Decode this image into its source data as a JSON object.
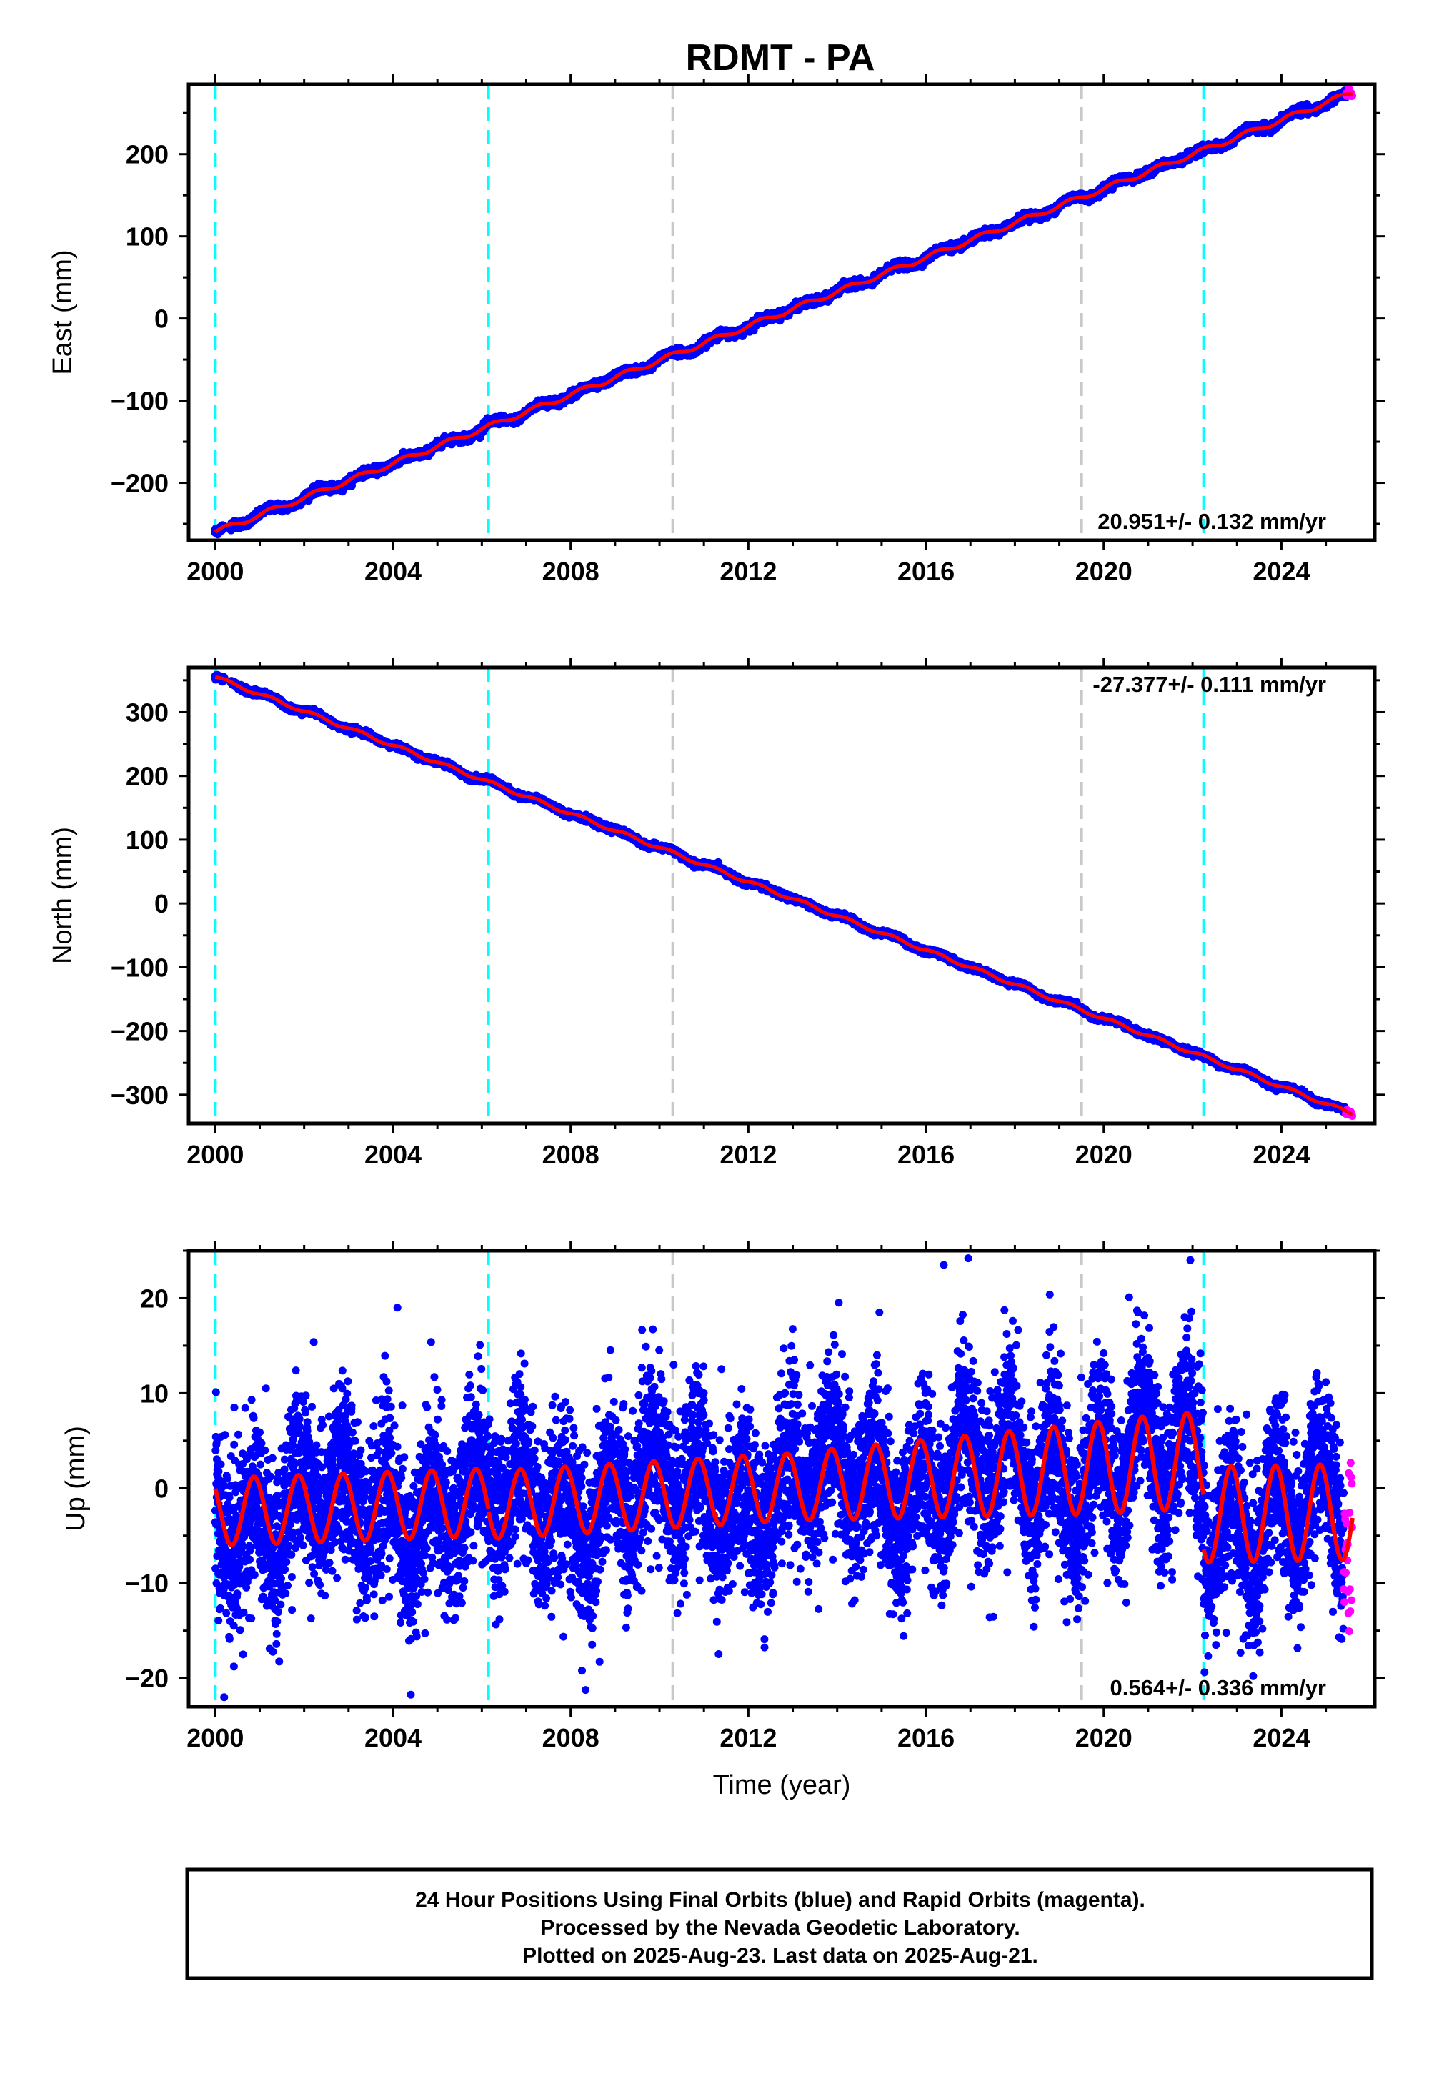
{
  "title": "RDMT - PA",
  "colors": {
    "final_points": "#0000ff",
    "rapid_points": "#ff00ff",
    "model_line": "#ff0000",
    "equipment_change": "#00ffff",
    "event_line": "#c8c8c8"
  },
  "x_ticks": [
    2000,
    2004,
    2008,
    2012,
    2016,
    2020,
    2024
  ],
  "x_axis_label": "Time (year)",
  "vertical_markers": [
    {
      "year": 2000.0,
      "kind": "equipment_change"
    },
    {
      "year": 2006.15,
      "kind": "equipment_change"
    },
    {
      "year": 2010.3,
      "kind": "event"
    },
    {
      "year": 2019.5,
      "kind": "event"
    },
    {
      "year": 2022.25,
      "kind": "equipment_change"
    }
  ],
  "chart_data": [
    {
      "type": "scatter",
      "component": "east",
      "ylabel": "East (mm)",
      "xlim": [
        1999.4,
        2026.1
      ],
      "ylim": [
        -270,
        285
      ],
      "yticks": [
        -200,
        -100,
        0,
        100,
        200
      ],
      "rate_label": "20.951+/- 0.132 mm/yr",
      "rate_position": "bottom-right",
      "trend": {
        "start_year": 2000.0,
        "start_value": -260,
        "end_year": 2025.6,
        "end_value": 275
      },
      "seasonal_amplitude": 3,
      "scatter_sigma": 2.2,
      "rapid_from_year": 2025.45,
      "rapid_sigma": 2
    },
    {
      "type": "scatter",
      "component": "north",
      "ylabel": "North (mm)",
      "xlim": [
        1999.4,
        2026.1
      ],
      "ylim": [
        -345,
        370
      ],
      "yticks": [
        -300,
        -200,
        -100,
        0,
        100,
        200,
        300
      ],
      "rate_label": "-27.377+/- 0.111 mm/yr",
      "rate_position": "top-right",
      "trend": {
        "start_year": 2000.0,
        "start_value": 355,
        "end_year": 2025.6,
        "end_value": -330
      },
      "seasonal_amplitude": 2.5,
      "scatter_sigma": 2,
      "rapid_from_year": 2025.45,
      "rapid_sigma": 2
    },
    {
      "type": "scatter",
      "component": "up",
      "ylabel": "Up (mm)",
      "xlim": [
        1999.4,
        2026.1
      ],
      "ylim": [
        -23,
        25
      ],
      "yticks": [
        -20,
        -10,
        0,
        10,
        20
      ],
      "rate_label": "0.564+/- 0.336 mm/yr",
      "rate_position": "bottom-right",
      "trend": {
        "start_year": 2000.0,
        "start_value": -2.5,
        "end_year": 2025.6,
        "end_value": -2.5
      },
      "segments": [
        {
          "from": 2000.0,
          "to": 2006.15,
          "start_value": -2.5,
          "end_value": -1.5
        },
        {
          "from": 2006.15,
          "to": 2019.5,
          "start_value": -1.8,
          "end_value": 2.0
        },
        {
          "from": 2019.5,
          "to": 2022.25,
          "start_value": 2.0,
          "end_value": 3.0
        },
        {
          "from": 2022.25,
          "to": 2025.6,
          "start_value": -2.8,
          "end_value": -2.5
        }
      ],
      "seasonal_amplitude": 4.2,
      "seasonal_phase_year": 0.62,
      "scatter_sigma": 4.2,
      "rapid_from_year": 2025.4,
      "rapid_sigma": 4.5,
      "outliers": [
        {
          "year": 2016.4,
          "value": 23.5
        },
        {
          "year": 2016.95,
          "value": 24.2
        },
        {
          "year": 2021.95,
          "value": 24.0
        },
        {
          "year": 2000.2,
          "value": -22.0
        },
        {
          "year": 2004.1,
          "value": 19.0
        },
        {
          "year": 2014.95,
          "value": 18.5
        }
      ]
    }
  ],
  "footer": {
    "line1": "24 Hour Positions Using Final Orbits (blue) and Rapid Orbits (magenta).",
    "line2": "Processed by the Nevada Geodetic Laboratory.",
    "line3": "Plotted on 2025-Aug-23. Last data on 2025-Aug-21."
  }
}
